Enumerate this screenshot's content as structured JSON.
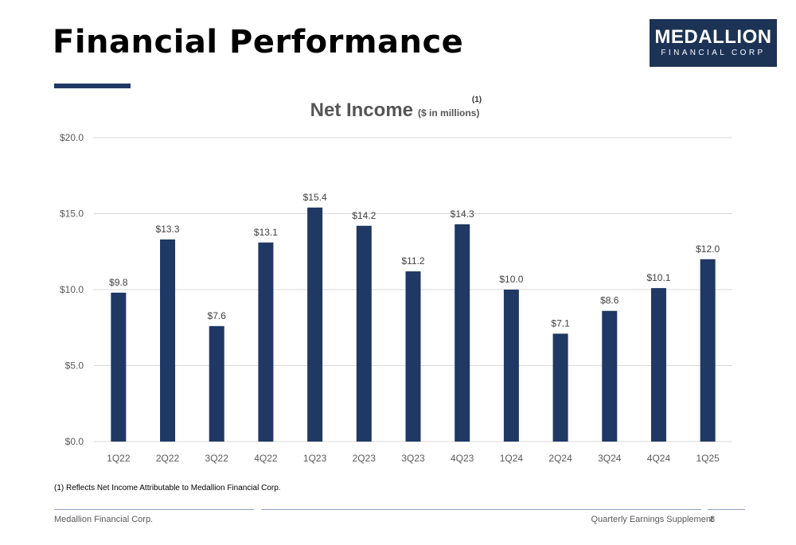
{
  "slide": {
    "title": "Financial Performance",
    "logo_main": "MEDALLION",
    "logo_sub": "FINANCIAL CORP",
    "footnote": "(1) Reflects Net Income Attributable to Medallion Financial Corp.",
    "footer_left": "Medallion Financial Corp.",
    "footer_right": "Quarterly Earnings Supplement",
    "page_number": "8"
  },
  "colors": {
    "bar": "#1f3864",
    "title_rule": "#1f3864",
    "logo_bg": "#1d3356",
    "gridline": "#d9d9d9"
  },
  "chart_data": {
    "type": "bar",
    "title": "Net Income",
    "subtitle": "($ in millions)",
    "title_superscript": "(1)",
    "categories": [
      "1Q22",
      "2Q22",
      "3Q22",
      "4Q22",
      "1Q23",
      "2Q23",
      "3Q23",
      "4Q23",
      "1Q24",
      "2Q24",
      "3Q24",
      "4Q24",
      "1Q25"
    ],
    "values": [
      9.8,
      13.3,
      7.6,
      13.1,
      15.4,
      14.2,
      11.2,
      14.3,
      10.0,
      7.1,
      8.6,
      10.1,
      12.0
    ],
    "value_labels": [
      "$9.8",
      "$13.3",
      "$7.6",
      "$13.1",
      "$15.4",
      "$14.2",
      "$11.2",
      "$14.3",
      "$10.0",
      "$7.1",
      "$8.6",
      "$10.1",
      "$12.0"
    ],
    "yticks": [
      0,
      5,
      10,
      15,
      20
    ],
    "ytick_labels": [
      "$0.0",
      "$5.0",
      "$10.0",
      "$15.0",
      "$20.0"
    ],
    "ylim": [
      0,
      20
    ],
    "xlabel": "",
    "ylabel": "",
    "grid": true,
    "legend": false
  }
}
